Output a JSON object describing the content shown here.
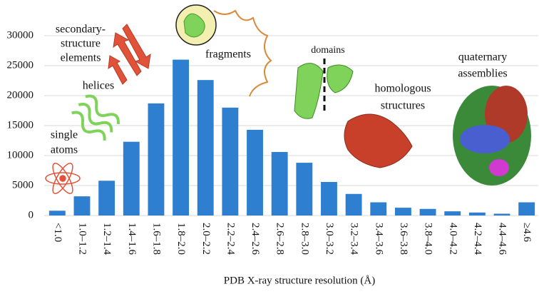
{
  "chart_data": {
    "type": "bar",
    "x_label": "PDB X-ray structure resolution (Å)",
    "categories": [
      "<1.0",
      "1.0–1.2",
      "1.2–1.4",
      "1.4–1.6",
      "1.6–1.8",
      "1.8–2.0",
      "2.0–2.2",
      "2.2–2.4",
      "2.4–2.6",
      "2.6–2.8",
      "2.8–3.0",
      "3.0–3.2",
      "3.2–3.4",
      "3.4–3.6",
      "3.6–3.8",
      "3.8–4.0",
      "4.0–4.2",
      "4.2–4.4",
      "4.4–4.6",
      "≥4.6"
    ],
    "values": [
      800,
      3200,
      5800,
      12300,
      18700,
      26000,
      22600,
      18000,
      14300,
      10600,
      8800,
      5600,
      3600,
      2200,
      1300,
      1100,
      700,
      500,
      300,
      2200
    ],
    "color": "#2f7fd0",
    "ylim": [
      0,
      30000
    ],
    "yticks": [
      0,
      5000,
      10000,
      15000,
      20000,
      25000,
      30000
    ],
    "grid": true,
    "annotations": [
      {
        "lines": [
          "secondary-",
          "structure",
          "elements"
        ]
      },
      {
        "lines": [
          "helices"
        ]
      },
      {
        "lines": [
          "single",
          "atoms"
        ]
      },
      {
        "lines": [
          "fragments"
        ]
      },
      {
        "lines": [
          "domains"
        ]
      },
      {
        "lines": [
          "homologous",
          "structures"
        ]
      },
      {
        "lines": [
          "quaternary",
          "assemblies"
        ]
      }
    ]
  }
}
